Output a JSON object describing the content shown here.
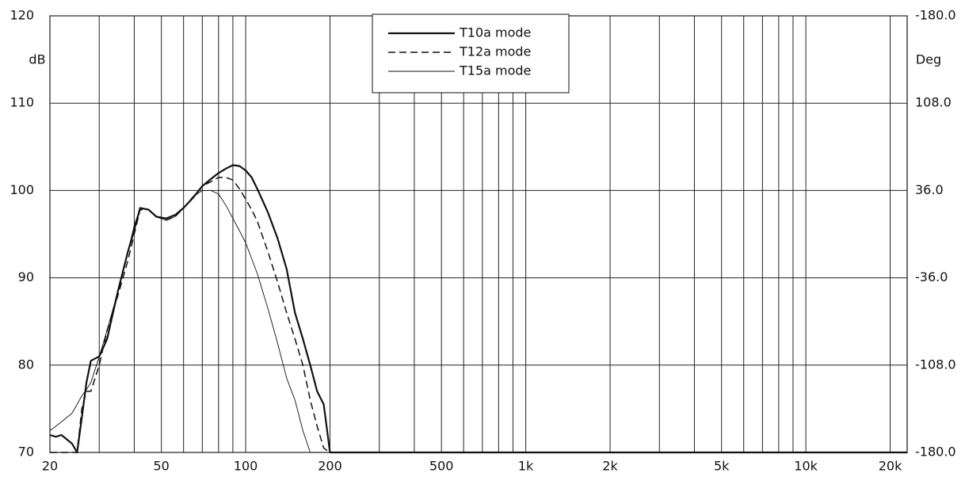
{
  "chart_data": {
    "type": "line",
    "y_label": "dB",
    "y2_label": "Deg",
    "log_x": true,
    "grid": true,
    "xlim": [
      20,
      23000
    ],
    "xticks": [
      20,
      50,
      100,
      200,
      500,
      {
        "value": 1000,
        "label": "1k"
      },
      {
        "value": 2000,
        "label": "2k"
      },
      {
        "value": 5000,
        "label": "5k"
      },
      {
        "value": 10000,
        "label": "10k"
      },
      {
        "value": 20000,
        "label": "20k"
      }
    ],
    "xgrid": [
      30,
      40,
      60,
      70,
      80,
      90,
      300,
      400,
      600,
      700,
      800,
      900,
      3000,
      4000,
      6000,
      7000,
      8000,
      9000
    ],
    "ylim": [
      70,
      120
    ],
    "yticks": [
      70,
      80,
      90,
      100,
      110,
      120
    ],
    "y2lim": [
      -180,
      180
    ],
    "y2ticks": [
      {
        "value": 180,
        "label": "-180.0"
      },
      {
        "value": 108,
        "label": "108.0"
      },
      {
        "value": 36,
        "label": "36.0"
      },
      {
        "value": -36,
        "label": "-36.0"
      },
      {
        "value": -108,
        "label": "-108.0"
      },
      {
        "value": -180,
        "label": "-180.0"
      }
    ],
    "legend": "top-center",
    "x": [
      20,
      21,
      22,
      24,
      25,
      26,
      27,
      28,
      30,
      32,
      35,
      38,
      40,
      42,
      45,
      48,
      52,
      56,
      60,
      65,
      70,
      75,
      80,
      85,
      90,
      95,
      100,
      105,
      110,
      120,
      130,
      140,
      150,
      160,
      170,
      180,
      190,
      200,
      1000,
      10000,
      23000
    ],
    "series": [
      {
        "name": "T10a mode",
        "color": "#111111",
        "style": "solid",
        "width": 2.2,
        "values": [
          72,
          71.8,
          72,
          71,
          70,
          74,
          78,
          80.5,
          81,
          83,
          88.5,
          93,
          95.5,
          98,
          97.8,
          97,
          96.8,
          97.2,
          98,
          99.2,
          100.5,
          101.3,
          102,
          102.5,
          102.9,
          102.8,
          102.3,
          101.5,
          100.2,
          97.5,
          94.5,
          91,
          86,
          83,
          80,
          77,
          75.5,
          70,
          70,
          70,
          70
        ]
      },
      {
        "name": "T12a mode",
        "color": "#111111",
        "style": "dashed",
        "width": 1.5,
        "values": [
          70,
          70,
          70,
          70,
          70,
          75,
          77,
          77,
          80,
          84,
          88,
          92,
          95,
          97.8,
          97.8,
          97,
          96.6,
          97,
          98,
          99.3,
          100.5,
          101,
          101.5,
          101.5,
          101.2,
          100.2,
          99,
          97.8,
          96.5,
          93,
          89.5,
          86,
          83,
          80,
          76,
          73,
          70.5,
          70,
          70,
          70,
          70
        ]
      },
      {
        "name": "T15a mode",
        "color": "#111111",
        "style": "solid",
        "width": 0.9,
        "values": [
          72.5,
          73,
          73.5,
          74.5,
          75.5,
          76.5,
          77.2,
          78,
          81,
          84,
          88.5,
          93,
          96,
          98,
          97.8,
          97,
          96.6,
          97,
          98,
          99.3,
          100,
          100,
          99.6,
          98.3,
          96.8,
          95.4,
          94,
          92.2,
          90.5,
          86.5,
          82.5,
          78.5,
          76,
          72.5,
          70,
          70,
          70,
          70,
          70,
          70,
          70
        ]
      }
    ]
  }
}
